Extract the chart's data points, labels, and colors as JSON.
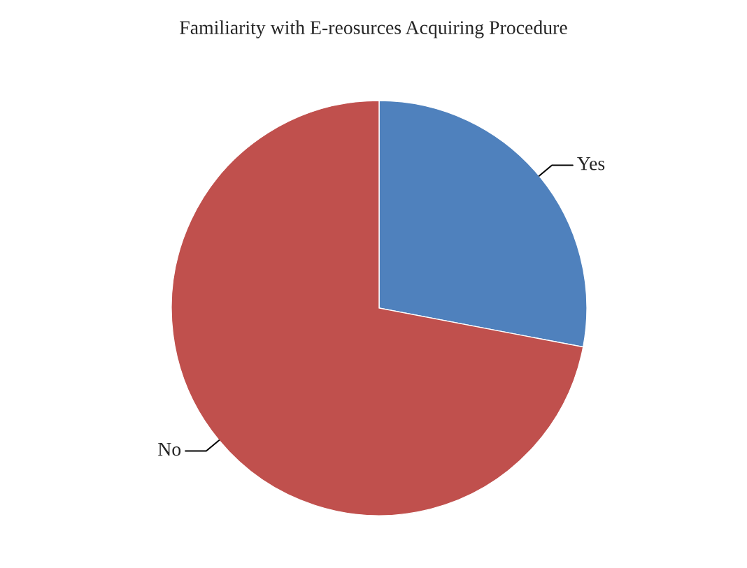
{
  "chart_data": {
    "type": "pie",
    "title": "Familiarity with E-reosurces Acquiring Procedure",
    "categories": [
      "Yes",
      "No"
    ],
    "values": [
      28,
      72
    ],
    "colors": [
      "#4f81bd",
      "#c0504d"
    ],
    "legend": false
  }
}
